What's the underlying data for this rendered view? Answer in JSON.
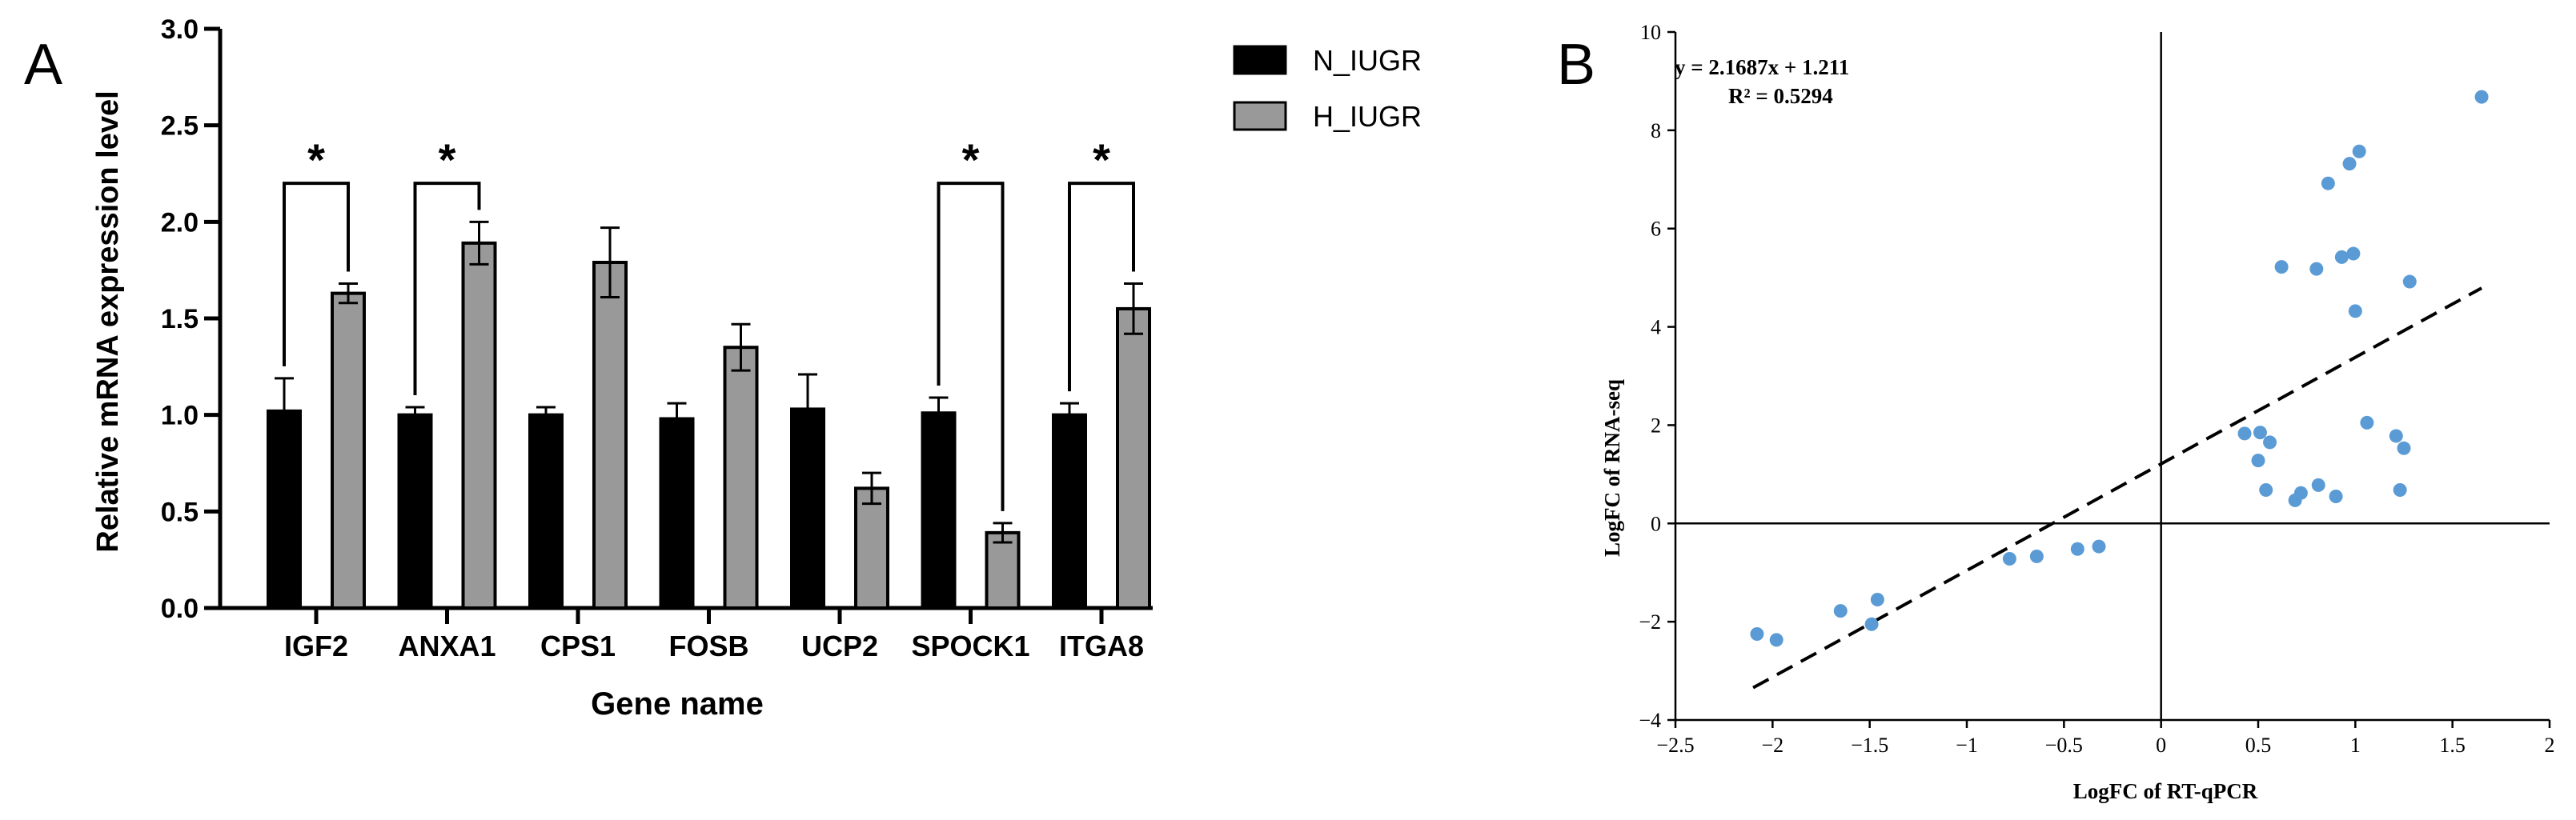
{
  "chart_data": [
    {
      "panel_label": "A",
      "type": "bar",
      "xlabel": "Gene name",
      "ylabel": "Relative mRNA expression level",
      "ylim": [
        0,
        3.0
      ],
      "yticks": [
        "0.0",
        "0.5",
        "1.0",
        "1.5",
        "2.0",
        "2.5",
        "3.0"
      ],
      "categories": [
        "IGF2",
        "ANXA1",
        "CPS1",
        "FOSB",
        "UCP2",
        "SPOCK1",
        "ITGA8"
      ],
      "series": [
        {
          "name": "N_IUGR",
          "color": "#000000",
          "values": [
            1.02,
            1.0,
            1.0,
            0.98,
            1.03,
            1.01,
            1.0
          ],
          "errors": [
            0.17,
            0.04,
            0.04,
            0.08,
            0.18,
            0.08,
            0.06
          ]
        },
        {
          "name": "H_IUGR",
          "color": "#999999",
          "values": [
            1.63,
            1.89,
            1.79,
            1.35,
            0.62,
            0.39,
            1.55
          ],
          "errors": [
            0.05,
            0.11,
            0.18,
            0.12,
            0.08,
            0.05,
            0.13
          ]
        }
      ],
      "significance": [
        {
          "category": "IGF2",
          "label": "*"
        },
        {
          "category": "ANXA1",
          "label": "*"
        },
        {
          "category": "SPOCK1",
          "label": "*"
        },
        {
          "category": "ITGA8",
          "label": "*"
        }
      ],
      "legend_position": "top-right",
      "grid": false
    },
    {
      "panel_label": "B",
      "type": "scatter",
      "xlabel": "LogFC of RT-qPCR",
      "ylabel": "LogFC of RNA-seq",
      "xlim": [
        -2.5,
        2
      ],
      "ylim": [
        -4,
        10
      ],
      "xticks": [
        {
          "value": -2.5,
          "label": "−2.5"
        },
        {
          "value": -2,
          "label": "−2"
        },
        {
          "value": -1.5,
          "label": "−1.5"
        },
        {
          "value": -1,
          "label": "−1"
        },
        {
          "value": -0.5,
          "label": "−0.5"
        },
        {
          "value": 0,
          "label": "0"
        },
        {
          "value": 0.5,
          "label": "0.5"
        },
        {
          "value": 1,
          "label": "1"
        },
        {
          "value": 1.5,
          "label": "1.5"
        },
        {
          "value": 2,
          "label": "2"
        }
      ],
      "yticks": [
        {
          "value": -4,
          "label": "−4"
        },
        {
          "value": -2,
          "label": "−2"
        },
        {
          "value": 0,
          "label": "0"
        },
        {
          "value": 2,
          "label": "2"
        },
        {
          "value": 4,
          "label": "4"
        },
        {
          "value": 6,
          "label": "6"
        },
        {
          "value": 8,
          "label": "8"
        },
        {
          "value": 10,
          "label": "10"
        }
      ],
      "point_color": "#5b9bd5",
      "points": [
        [
          -2.08,
          -2.25
        ],
        [
          -1.98,
          -2.37
        ],
        [
          -1.65,
          -1.78
        ],
        [
          -1.49,
          -2.05
        ],
        [
          -1.46,
          -1.55
        ],
        [
          -0.78,
          -0.72
        ],
        [
          -0.64,
          -0.67
        ],
        [
          -0.43,
          -0.52
        ],
        [
          -0.32,
          -0.47
        ],
        [
          0.43,
          1.83
        ],
        [
          0.5,
          1.28
        ],
        [
          0.51,
          1.85
        ],
        [
          0.54,
          0.68
        ],
        [
          0.56,
          1.65
        ],
        [
          0.62,
          5.22
        ],
        [
          0.69,
          0.47
        ],
        [
          0.72,
          0.62
        ],
        [
          0.8,
          5.18
        ],
        [
          0.81,
          0.78
        ],
        [
          0.86,
          6.92
        ],
        [
          0.9,
          0.55
        ],
        [
          0.93,
          5.42
        ],
        [
          0.97,
          7.32
        ],
        [
          0.99,
          5.49
        ],
        [
          1.0,
          4.32
        ],
        [
          1.02,
          7.57
        ],
        [
          1.06,
          2.05
        ],
        [
          1.21,
          1.78
        ],
        [
          1.23,
          0.68
        ],
        [
          1.25,
          1.53
        ],
        [
          1.28,
          4.92
        ],
        [
          1.65,
          8.68
        ]
      ],
      "trendline": {
        "slope": 2.1687,
        "intercept": 1.211,
        "x_range": [
          -2.1,
          1.65
        ],
        "style": "dashed"
      },
      "equation": "y = 2.1687x + 1.211",
      "r_squared": "R² = 0.5294",
      "grid": false
    }
  ]
}
